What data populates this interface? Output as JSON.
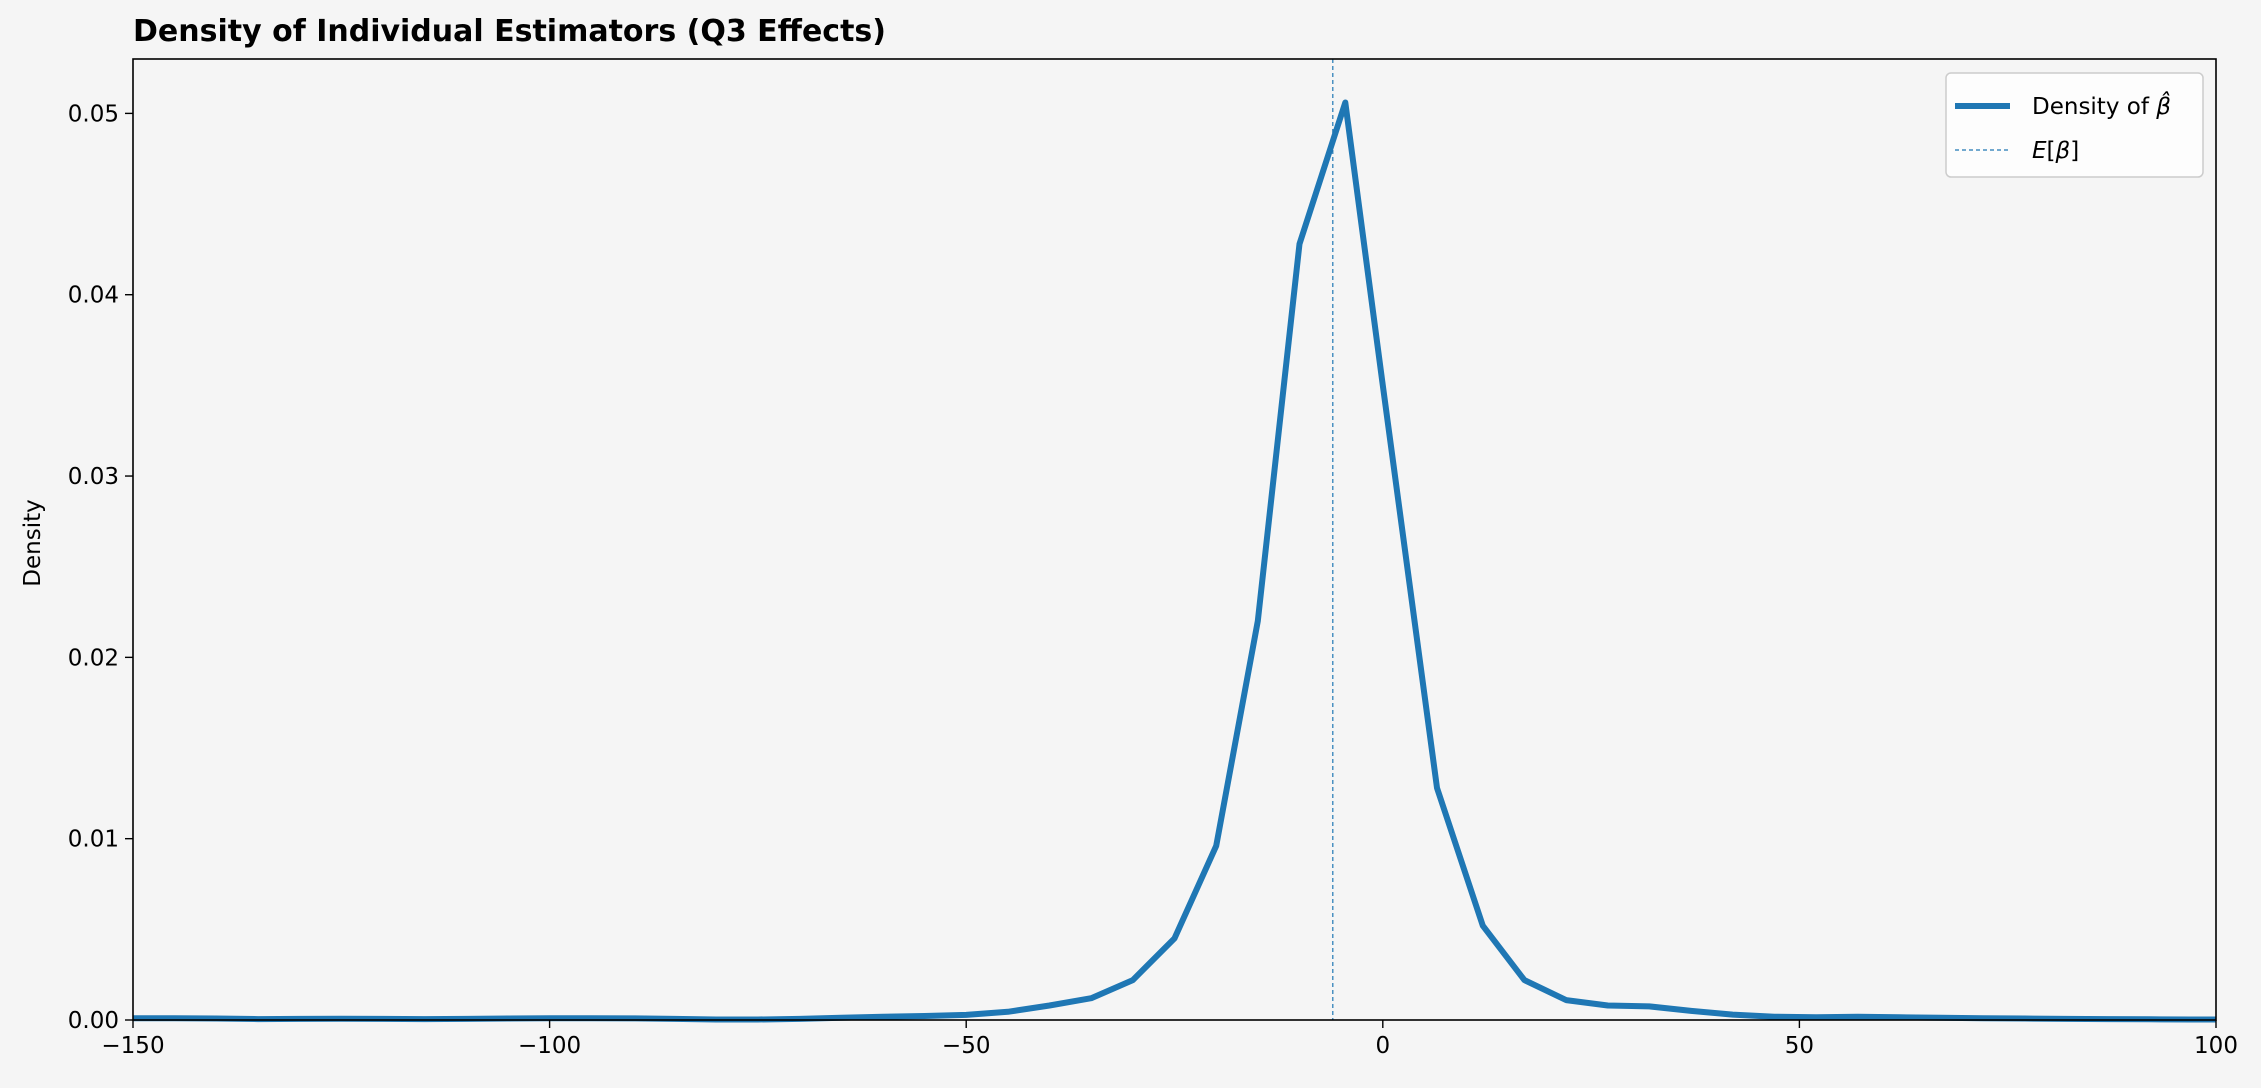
{
  "chart_data": {
    "type": "line",
    "title": "Density of Individual Estimators (Q3 Effects)",
    "xlabel": "",
    "ylabel": "Density",
    "xlim": [
      -150,
      100
    ],
    "ylim": [
      0,
      0.053
    ],
    "x_ticks": [
      -150,
      -100,
      -50,
      0,
      50,
      100
    ],
    "x_tick_labels": [
      "−150",
      "−100",
      "−50",
      "0",
      "50",
      "100"
    ],
    "y_ticks": [
      0,
      0.01,
      0.02,
      0.03,
      0.04,
      0.05
    ],
    "y_tick_labels": [
      "0.00",
      "0.01",
      "0.02",
      "0.03",
      "0.04",
      "0.05"
    ],
    "grid": false,
    "legend_position": "top-right",
    "colors": {
      "line": "#1f77b4",
      "background": "#f5f5f5",
      "axes": "#000000"
    },
    "series": [
      {
        "name": "Density of β̂",
        "legend_label": "Density of ",
        "legend_symbol": "β̂",
        "style": "solid",
        "x": [
          -150,
          -145,
          -140,
          -135,
          -130,
          -125,
          -120,
          -115,
          -110,
          -105,
          -100,
          -95,
          -90,
          -85,
          -80,
          -75,
          -70,
          -65,
          -60,
          -55,
          -50,
          -45,
          -40,
          -35,
          -30,
          -25,
          -20,
          -15,
          -10,
          -4.5,
          0,
          6.5,
          12,
          17,
          22,
          27,
          32,
          37,
          42,
          47,
          52,
          57,
          62,
          67,
          72,
          77,
          82,
          87,
          92,
          97,
          100
        ],
        "y": [
          0.0001,
          0.0001,
          8e-05,
          5e-05,
          6e-05,
          7e-05,
          6e-05,
          5e-05,
          6e-05,
          8e-05,
          0.0001,
          0.0001,
          9e-05,
          6e-05,
          3e-05,
          3e-05,
          6e-05,
          0.00012,
          0.00018,
          0.00022,
          0.00028,
          0.00045,
          0.0008,
          0.0012,
          0.0022,
          0.0045,
          0.0096,
          0.022,
          0.0428,
          0.0506,
          0.035,
          0.0128,
          0.0052,
          0.0022,
          0.0011,
          0.0008,
          0.00075,
          0.0005,
          0.0003,
          0.00018,
          0.00015,
          0.00018,
          0.00015,
          0.00012,
          0.0001,
          8e-05,
          6e-05,
          5e-05,
          4e-05,
          3e-05,
          3e-05
        ]
      }
    ],
    "reference_lines": [
      {
        "name": "E[β]",
        "legend_label_pre": "E[",
        "legend_symbol": "β",
        "legend_label_post": "]",
        "style": "dashed",
        "x": -6
      }
    ]
  }
}
